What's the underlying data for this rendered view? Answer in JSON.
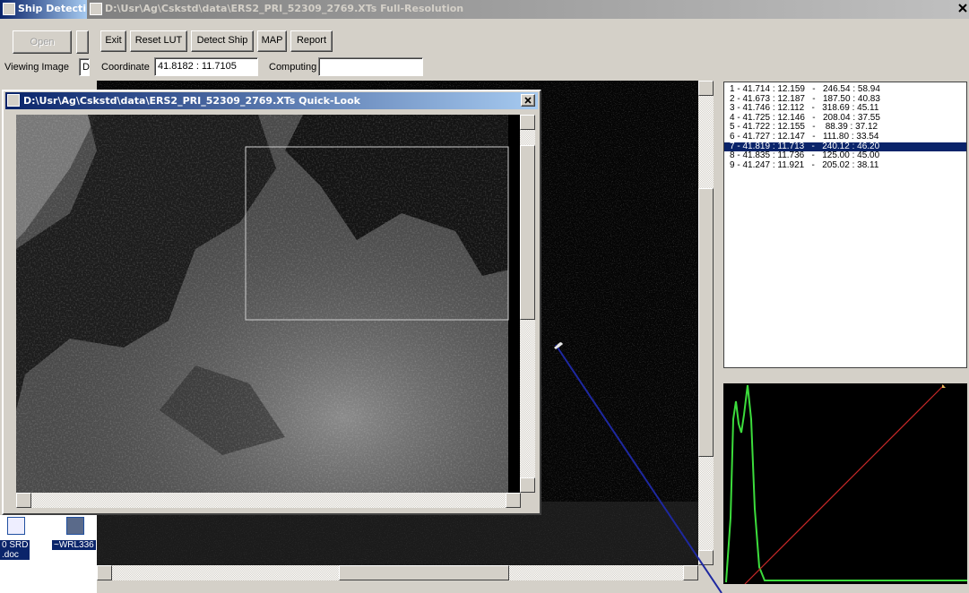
{
  "back_window": {
    "title": "Ship Detecti",
    "open_button": "Open",
    "viewing_image_label": "Viewing Image",
    "viewing_image_value": "D"
  },
  "main_window": {
    "title": "D:\\Usr\\Ag\\Cskstd\\data\\ERS2_PRI_52309_2769.XTs Full-Resolution",
    "toolbar": [
      "Exit",
      "Reset LUT",
      "Detect Ship",
      "MAP",
      "Report"
    ],
    "coordinate_label": "Coordinate",
    "coordinate_value": "41.8182 :  11.7105",
    "computing_label": "Computing"
  },
  "quick_look": {
    "title": "D:\\Usr\\Ag\\Cskstd\\data\\ERS2_PRI_52309_2769.XTs Quick-Look"
  },
  "detections": {
    "items": [
      "1 - 41.714 : 12.159   -   246.54 : 58.94",
      "2 - 41.673 : 12.187   -   187.50 : 40.83",
      "3 - 41.746 : 12.112   -   318.69 : 45.11",
      "4 - 41.725 : 12.146   -   208.04 : 37.55",
      "5 - 41.722 : 12.155   -    88.39 : 37.12",
      "6 - 41.727 : 12.147   -   111.80 : 33.54",
      "7 - 41.819 : 11.713   -   240.12 : 46.20",
      "8 - 41.835 : 11.736   -   125.00 : 45.00",
      "9 - 41.247 : 11.921   -   205.02 : 38.11"
    ],
    "selected_index": 6
  },
  "desktop_icons": [
    {
      "lines": [
        "0 SRD",
        ".doc"
      ]
    },
    {
      "lines": [
        "~WRL336"
      ]
    }
  ]
}
